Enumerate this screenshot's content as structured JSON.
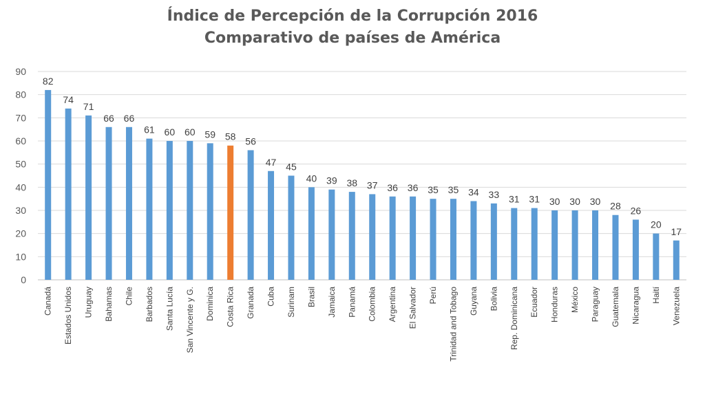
{
  "chart_data": {
    "type": "bar",
    "title": "Índice de Percepción de la Corrupción 2016",
    "subtitle": "Comparativo de países de América",
    "xlabel": "",
    "ylabel": "",
    "ylim": [
      0,
      90
    ],
    "yticks": [
      0,
      10,
      20,
      30,
      40,
      50,
      60,
      70,
      80,
      90
    ],
    "grid": true,
    "categories": [
      "Canadá",
      "Estados Unidos",
      "Uruguay",
      "Bahamas",
      "Chile",
      "Barbados",
      "Santa Lucía",
      "San Vincente y G.",
      "Dominica",
      "Costa Rica",
      "Granada",
      "Cuba",
      "Surinam",
      "Brasil",
      "Jamaica",
      "Panamá",
      "Colombia",
      "Argentina",
      "El Salvador",
      "Perú",
      "Trinidad and Tobago",
      "Guyana",
      "Bolivia",
      "Rep. Dominicana",
      "Ecuador",
      "Honduras",
      "México",
      "Paraguay",
      "Guatemala",
      "Nicaragua",
      "Haití",
      "Venezuela"
    ],
    "values": [
      82,
      74,
      71,
      66,
      66,
      61,
      60,
      60,
      59,
      58,
      56,
      47,
      45,
      40,
      39,
      38,
      37,
      36,
      36,
      35,
      35,
      34,
      33,
      31,
      31,
      30,
      30,
      30,
      28,
      26,
      20,
      17
    ],
    "highlight_category": "Costa Rica",
    "colors": {
      "bar": "#5B9BD5",
      "highlight": "#ED7D31",
      "grid": "#D9D9D9",
      "text": "#595959",
      "label": "#404040"
    }
  }
}
